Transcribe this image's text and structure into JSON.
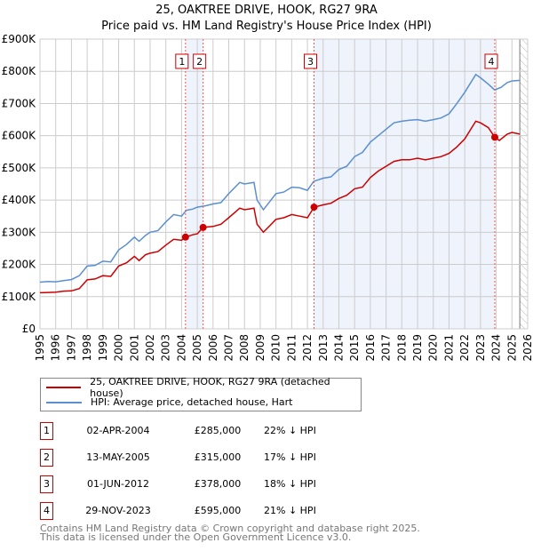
{
  "title": "25, OAKTREE DRIVE, HOOK, RG27 9RA",
  "subtitle": "Price paid vs. HM Land Registry's House Price Index (HPI)",
  "chart_data": {
    "type": "line",
    "title": "25, OAKTREE DRIVE, HOOK, RG27 9RA",
    "subtitle": "Price paid vs. HM Land Registry's House Price Index (HPI)",
    "xlim": [
      1995,
      2026
    ],
    "ylim": [
      0,
      900000
    ],
    "grid": true,
    "x_ticks": [
      "1995",
      "1996",
      "1997",
      "1998",
      "1999",
      "2000",
      "2001",
      "2002",
      "2003",
      "2004",
      "2005",
      "2006",
      "2007",
      "2008",
      "2009",
      "2010",
      "2011",
      "2012",
      "2013",
      "2014",
      "2015",
      "2016",
      "2017",
      "2018",
      "2019",
      "2020",
      "2021",
      "2022",
      "2023",
      "2024",
      "2025",
      "2026"
    ],
    "y_ticks": [
      {
        "v": 0,
        "l": "£0"
      },
      {
        "v": 100000,
        "l": "£100K"
      },
      {
        "v": 200000,
        "l": "£200K"
      },
      {
        "v": 300000,
        "l": "£300K"
      },
      {
        "v": 400000,
        "l": "£400K"
      },
      {
        "v": 500000,
        "l": "£500K"
      },
      {
        "v": 600000,
        "l": "£600K"
      },
      {
        "v": 700000,
        "l": "£700K"
      },
      {
        "v": 800000,
        "l": "£800K"
      },
      {
        "v": 900000,
        "l": "£900K"
      }
    ],
    "series": [
      {
        "name": "HPI: Average price, detached house, Hart",
        "color": "#5b8fd0",
        "x": [
          1995,
          1995.5,
          1996,
          1996.5,
          1997,
          1997.5,
          1998,
          1998.5,
          1999,
          1999.5,
          2000,
          2000.5,
          2001,
          2001.3,
          2001.7,
          2002,
          2002.5,
          2003,
          2003.5,
          2004,
          2004.3,
          2004.7,
          2005,
          2005.5,
          2006,
          2006.5,
          2007,
          2007.7,
          2008,
          2008.6,
          2008.8,
          2009.2,
          2009.6,
          2010,
          2010.5,
          2011,
          2011.5,
          2012,
          2012.4,
          2013,
          2013.5,
          2014,
          2014.5,
          2015,
          2015.5,
          2016,
          2016.5,
          2017,
          2017.5,
          2018,
          2018.5,
          2019,
          2019.5,
          2020,
          2020.5,
          2021,
          2021.5,
          2022,
          2022.7,
          2023,
          2023.5,
          2023.9,
          2024.3,
          2024.7,
          2025,
          2025.5
        ],
        "y": [
          145000,
          147000,
          146000,
          150000,
          153000,
          165000,
          195000,
          197000,
          210000,
          208000,
          245000,
          262000,
          285000,
          272000,
          290000,
          300000,
          305000,
          332000,
          355000,
          350000,
          368000,
          372000,
          378000,
          382000,
          388000,
          392000,
          420000,
          455000,
          450000,
          455000,
          400000,
          370000,
          395000,
          420000,
          425000,
          440000,
          438000,
          430000,
          458000,
          468000,
          472000,
          495000,
          505000,
          535000,
          548000,
          580000,
          600000,
          620000,
          640000,
          645000,
          648000,
          650000,
          645000,
          650000,
          655000,
          668000,
          700000,
          735000,
          790000,
          780000,
          760000,
          742000,
          750000,
          765000,
          770000,
          772000
        ]
      },
      {
        "name": "25, OAKTREE DRIVE, HOOK, RG27 9RA (detached house)",
        "color": "#cc0000",
        "x": [
          1995,
          1995.5,
          1996,
          1996.5,
          1997,
          1997.5,
          1998,
          1998.5,
          1999,
          1999.5,
          2000,
          2000.5,
          2001,
          2001.3,
          2001.7,
          2002,
          2002.5,
          2003,
          2003.5,
          2004,
          2004.25,
          2004.7,
          2005,
          2005.37,
          2006,
          2006.5,
          2007,
          2007.7,
          2008,
          2008.6,
          2008.8,
          2009.2,
          2009.6,
          2010,
          2010.5,
          2011,
          2011.5,
          2012,
          2012.42,
          2013,
          2013.5,
          2014,
          2014.5,
          2015,
          2015.5,
          2016,
          2016.5,
          2017,
          2017.5,
          2018,
          2018.5,
          2019,
          2019.5,
          2020,
          2020.5,
          2021,
          2021.5,
          2022,
          2022.7,
          2023,
          2023.5,
          2023.91,
          2024.2,
          2024.7,
          2025,
          2025.5
        ],
        "y": [
          112000,
          113000,
          114000,
          117000,
          118000,
          125000,
          152000,
          155000,
          165000,
          163000,
          195000,
          205000,
          225000,
          212000,
          230000,
          235000,
          240000,
          260000,
          278000,
          275000,
          285000,
          292000,
          295000,
          315000,
          318000,
          325000,
          345000,
          375000,
          370000,
          375000,
          325000,
          300000,
          320000,
          340000,
          345000,
          355000,
          350000,
          345000,
          378000,
          385000,
          390000,
          405000,
          415000,
          435000,
          440000,
          470000,
          490000,
          505000,
          520000,
          525000,
          525000,
          530000,
          525000,
          530000,
          535000,
          545000,
          565000,
          590000,
          645000,
          640000,
          625000,
          595000,
          585000,
          605000,
          610000,
          605000
        ]
      }
    ],
    "sales": [
      {
        "label": "1",
        "x": 2004.25,
        "y": 285000
      },
      {
        "label": "2",
        "x": 2005.37,
        "y": 315000
      },
      {
        "label": "3",
        "x": 2012.42,
        "y": 378000
      },
      {
        "label": "4",
        "x": 2023.91,
        "y": 595000
      }
    ],
    "forecast_from": 2025.5
  },
  "legend": {
    "property": "25, OAKTREE DRIVE, HOOK, RG27 9RA (detached house)",
    "hpi": "HPI: Average price, detached house, Hart"
  },
  "sales_table": [
    {
      "num": "1",
      "date": "02-APR-2004",
      "price": "£285,000",
      "hpi": "22% ↓ HPI"
    },
    {
      "num": "2",
      "date": "13-MAY-2005",
      "price": "£315,000",
      "hpi": "17% ↓ HPI"
    },
    {
      "num": "3",
      "date": "01-JUN-2012",
      "price": "£378,000",
      "hpi": "18% ↓ HPI"
    },
    {
      "num": "4",
      "date": "29-NOV-2023",
      "price": "£595,000",
      "hpi": "21% ↓ HPI"
    }
  ],
  "footer": {
    "line1": "Contains HM Land Registry data © Crown copyright and database right 2025.",
    "line2": "This data is licensed under the Open Government Licence v3.0."
  }
}
